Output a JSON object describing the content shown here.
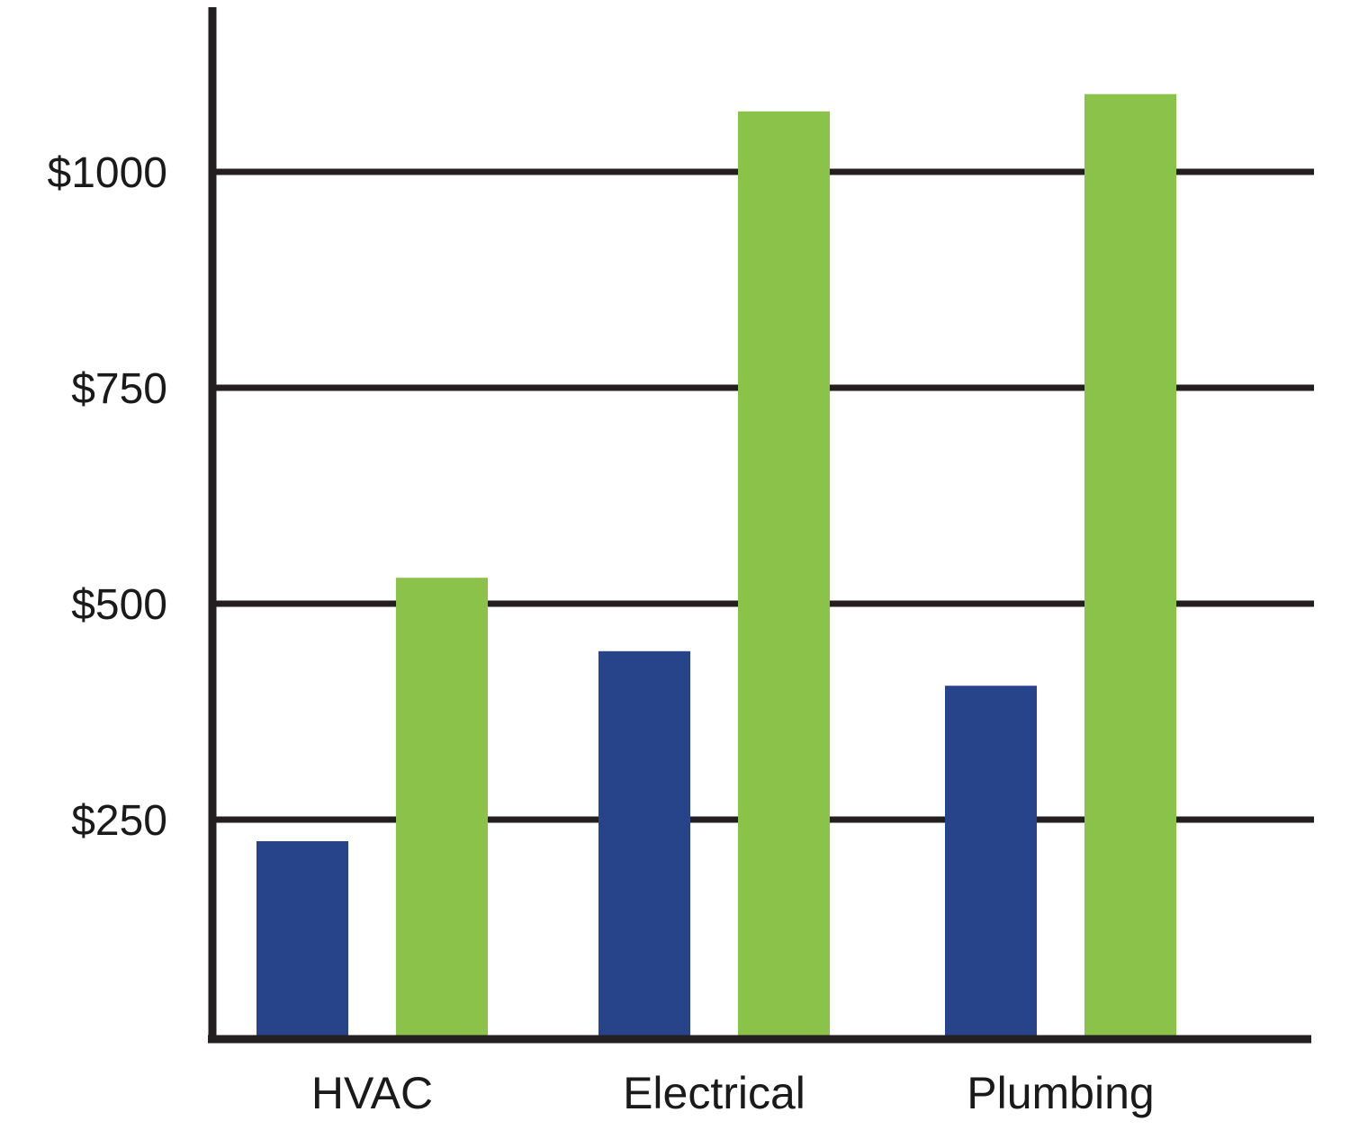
{
  "chart_data": {
    "type": "bar",
    "categories": [
      "HVAC",
      "Electrical",
      "Plumbing"
    ],
    "series": [
      {
        "values": [
          225,
          445,
          405
        ],
        "color": "#27448b"
      },
      {
        "values": [
          530,
          1070,
          1090
        ],
        "color": "#8bc34a"
      }
    ],
    "yticks": [
      250,
      500,
      750,
      1000
    ],
    "ytick_labels": [
      "$250",
      "$500",
      "$750",
      "$1000"
    ],
    "ylim": [
      0,
      1200
    ],
    "grid": true,
    "gridline_color": "#231f20",
    "axis_color": "#231f20"
  }
}
